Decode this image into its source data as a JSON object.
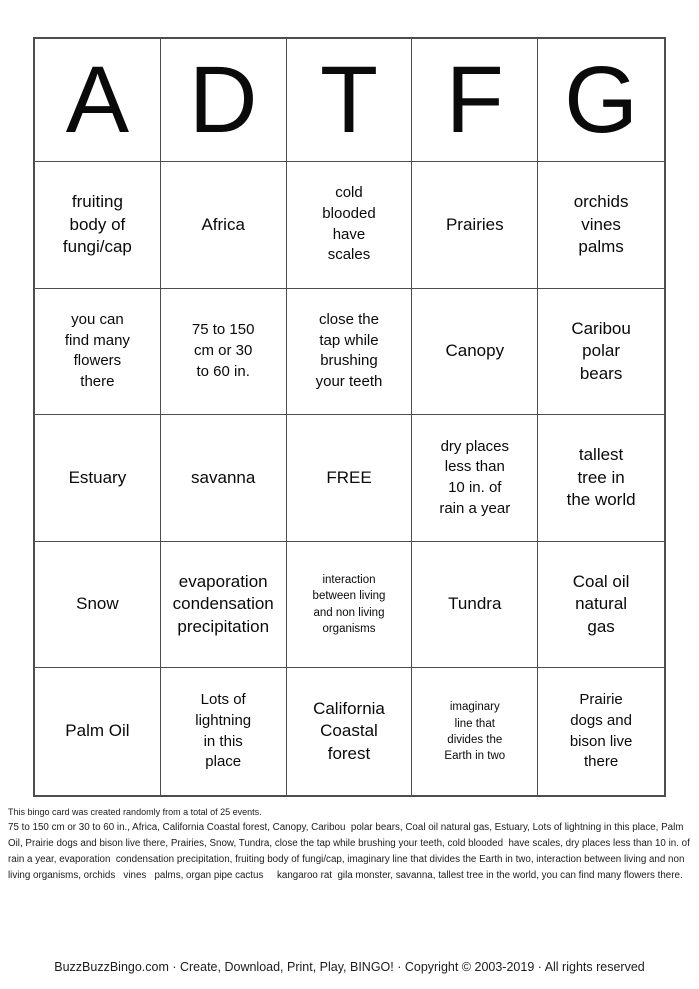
{
  "colors": {
    "grid_line": "#4d4d4d",
    "text": "#0a0a0a",
    "background": "#ffffff"
  },
  "grid": {
    "headers": [
      "A",
      "D",
      "T",
      "F",
      "G"
    ],
    "cells": [
      {
        "text": "fruiting\nbody of\nfungi/cap"
      },
      {
        "text": "Africa"
      },
      {
        "text": "cold\nblooded\nhave\nscales"
      },
      {
        "text": "Prairies"
      },
      {
        "text": "orchids\nvines\npalms"
      },
      {
        "text": "you can\nfind many\nflowers\nthere"
      },
      {
        "text": "75 to 150\ncm or 30\nto 60 in."
      },
      {
        "text": "close the\ntap while\nbrushing\nyour teeth"
      },
      {
        "text": "Canopy"
      },
      {
        "text": "Caribou\npolar\nbears"
      },
      {
        "text": "Estuary"
      },
      {
        "text": "savanna"
      },
      {
        "text": "FREE"
      },
      {
        "text": "dry places\nless than\n10 in. of\nrain a year"
      },
      {
        "text": "tallest\ntree in\nthe world"
      },
      {
        "text": "Snow"
      },
      {
        "text": "evaporation\ncondensation\nprecipitation"
      },
      {
        "text": "interaction\nbetween living\nand non living\norganisms"
      },
      {
        "text": "Tundra"
      },
      {
        "text": "Coal oil\nnatural\ngas"
      },
      {
        "text": "Palm Oil"
      },
      {
        "text": "Lots of\nlightning\nin this\nplace"
      },
      {
        "text": "California\nCoastal\nforest"
      },
      {
        "text": "imaginary\nline that\ndivides the\nEarth in two"
      },
      {
        "text": "Prairie\ndogs and\nbison live\nthere"
      }
    ]
  },
  "footer": {
    "summary": "This bingo card was created randomly from a total of 25 events.",
    "events": "75 to 150 cm or 30 to 60 in., Africa, California Coastal forest, Canopy, Caribou  polar bears, Coal oil natural gas, Estuary, Lots of lightning in this place, Palm Oil, Prairie dogs and bison live there, Prairies, Snow, Tundra, close the tap while brushing your teeth, cold blooded  have scales, dry places less than 10 in. of rain a year, evaporation  condensation precipitation, fruiting body of fungi/cap, imaginary line that divides the Earth in two, interaction between living and non living organisms, orchids   vines   palms, organ pipe cactus     kangaroo rat  gila monster, savanna, tallest tree in the world, you can find many flowers there."
  },
  "credit": {
    "text": "BuzzBuzzBingo.com · Create, Download, Print, Play, BINGO! · Copyright © 2003-2019 · All rights reserved"
  }
}
